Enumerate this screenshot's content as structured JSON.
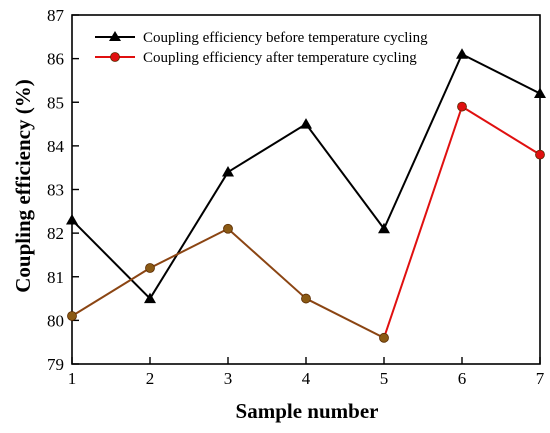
{
  "chart_data": {
    "type": "line",
    "xlabel": "Sample number",
    "ylabel": "Coupling efficiency (%)",
    "xlim": [
      1,
      7
    ],
    "ylim": [
      79,
      87
    ],
    "x": [
      1,
      2,
      3,
      4,
      5,
      6,
      7
    ],
    "x_ticks": [
      "1",
      "2",
      "3",
      "4",
      "5",
      "6",
      "7"
    ],
    "y_ticks": [
      "79",
      "80",
      "81",
      "82",
      "83",
      "84",
      "85",
      "86",
      "87"
    ],
    "grid": false,
    "legend_position": "top-left",
    "series": [
      {
        "name": "Coupling efficiency before temperature cycling",
        "values": [
          82.3,
          80.5,
          83.4,
          84.5,
          82.1,
          86.1,
          85.2
        ],
        "color": "#000000",
        "marker": "triangle"
      },
      {
        "name": "Coupling efficiency after temperature cycling",
        "values": [
          80.1,
          81.2,
          82.1,
          80.5,
          79.6,
          84.9,
          83.8
        ],
        "color": "#e01010",
        "line_color_early": "#8b4513",
        "marker": "circle"
      }
    ]
  }
}
